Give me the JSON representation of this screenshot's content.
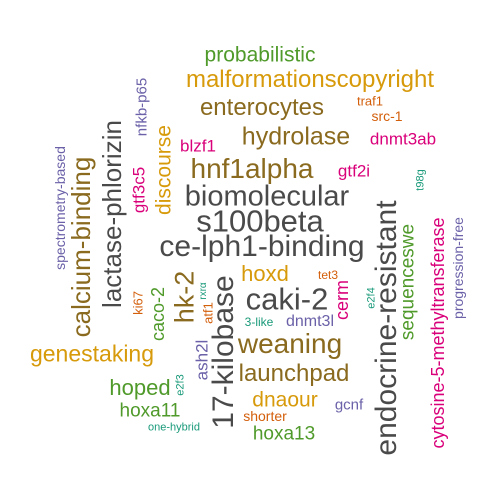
{
  "palette": {
    "green": "#4f9a2a",
    "gold": "#d79a0b",
    "brown": "#8a6a1e",
    "gray": "#4a4a4a",
    "magenta": "#d9007a",
    "purple": "#6a61a8",
    "orange": "#d35f0b",
    "teal": "#1a9a7a"
  },
  "words": [
    {
      "id": "probabilistic",
      "text": "probabilistic",
      "color": "green"
    },
    {
      "id": "malformationscopyright",
      "text": "malformationscopyright",
      "color": "gold"
    },
    {
      "id": "enterocytes",
      "text": "enterocytes",
      "color": "brown"
    },
    {
      "id": "traf1",
      "text": "traf1",
      "color": "orange"
    },
    {
      "id": "src-1",
      "text": "src-1",
      "color": "orange"
    },
    {
      "id": "nfkb-p65",
      "text": "nfkb-p65",
      "color": "purple"
    },
    {
      "id": "hydrolase",
      "text": "hydrolase",
      "color": "brown"
    },
    {
      "id": "dnmt3ab",
      "text": "dnmt3ab",
      "color": "magenta"
    },
    {
      "id": "blzf1",
      "text": "blzf1",
      "color": "magenta"
    },
    {
      "id": "hnf1alpha",
      "text": "hnf1alpha",
      "color": "brown"
    },
    {
      "id": "gtf2i",
      "text": "gtf2i",
      "color": "magenta"
    },
    {
      "id": "biomolecular",
      "text": "biomolecular",
      "color": "gray"
    },
    {
      "id": "s100beta",
      "text": "s100beta",
      "color": "gray"
    },
    {
      "id": "ce-lph1-binding",
      "text": "ce-lph1-binding",
      "color": "gray"
    },
    {
      "id": "spectrometry-based",
      "text": "spectrometry-based",
      "color": "purple"
    },
    {
      "id": "calcium-binding",
      "text": "calcium-binding",
      "color": "brown"
    },
    {
      "id": "lactase-phlorizin",
      "text": "lactase-phlorizin",
      "color": "gray"
    },
    {
      "id": "gtf3c5",
      "text": "gtf3c5",
      "color": "magenta"
    },
    {
      "id": "discourse",
      "text": "discourse",
      "color": "gold"
    },
    {
      "id": "endocrine-resistant",
      "text": "endocrine-resistant",
      "color": "gray"
    },
    {
      "id": "sequenceswe",
      "text": "sequenceswe",
      "color": "green"
    },
    {
      "id": "t98g",
      "text": "t98g",
      "color": "teal"
    },
    {
      "id": "cytosine-5-methyltransferase",
      "text": "cytosine-5-methyltransferase",
      "color": "magenta"
    },
    {
      "id": "progression-free",
      "text": "progression-free",
      "color": "purple"
    },
    {
      "id": "hoxd",
      "text": "hoxd",
      "color": "gold"
    },
    {
      "id": "tet3",
      "text": "tet3",
      "color": "orange"
    },
    {
      "id": "caki-2",
      "text": "caki-2",
      "color": "gray"
    },
    {
      "id": "hk-2",
      "text": "hk-2",
      "color": "brown"
    },
    {
      "id": "17-kilobase",
      "text": "17-kilobase",
      "color": "gray"
    },
    {
      "id": "ki67",
      "text": "ki67",
      "color": "orange"
    },
    {
      "id": "caco-2",
      "text": "caco-2",
      "color": "green"
    },
    {
      "id": "atf1",
      "text": "atf1",
      "color": "orange"
    },
    {
      "id": "rxra",
      "text": "rxrα",
      "color": "teal"
    },
    {
      "id": "cerm",
      "text": "cerm",
      "color": "magenta"
    },
    {
      "id": "e2f4",
      "text": "e2f4",
      "color": "teal"
    },
    {
      "id": "3-like",
      "text": "3-like",
      "color": "teal"
    },
    {
      "id": "dnmt3l",
      "text": "dnmt3l",
      "color": "purple"
    },
    {
      "id": "genestaking",
      "text": "genestaking",
      "color": "gold"
    },
    {
      "id": "weaning",
      "text": "weaning",
      "color": "brown"
    },
    {
      "id": "ash2l",
      "text": "ash2l",
      "color": "purple"
    },
    {
      "id": "launchpad",
      "text": "launchpad",
      "color": "brown"
    },
    {
      "id": "hoped",
      "text": "hoped",
      "color": "green"
    },
    {
      "id": "e2f3",
      "text": "e2f3",
      "color": "teal"
    },
    {
      "id": "dnaour",
      "text": "dnaour",
      "color": "gold"
    },
    {
      "id": "hoxa11",
      "text": "hoxa11",
      "color": "green"
    },
    {
      "id": "shorter",
      "text": "shorter",
      "color": "orange"
    },
    {
      "id": "gcnf",
      "text": "gcnf",
      "color": "purple"
    },
    {
      "id": "one-hybrid",
      "text": "one-hybrid",
      "color": "teal"
    },
    {
      "id": "hoxa13",
      "text": "hoxa13",
      "color": "green"
    }
  ]
}
